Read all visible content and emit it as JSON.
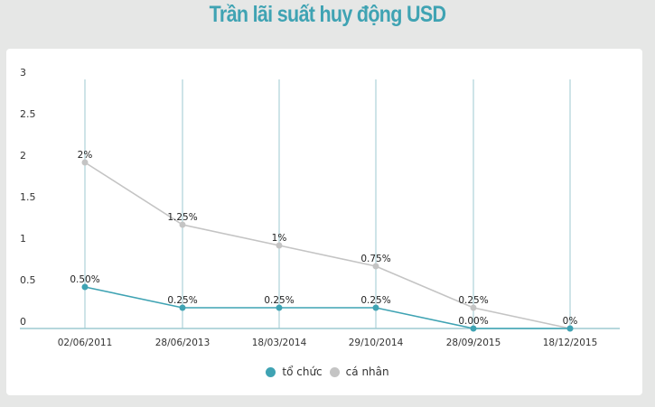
{
  "title": "Trần lãi suất huy động USD",
  "colors": {
    "title": "#3fa3b3",
    "series_to_chuc": "#3fa3b3",
    "series_ca_nhan": "#c4c4c4",
    "gridline": "#9ecad2",
    "background": "#e6e7e6",
    "card": "#ffffff"
  },
  "legend": [
    {
      "label": "tổ chức",
      "color": "#3fa3b3"
    },
    {
      "label": "cá nhân",
      "color": "#c4c4c4"
    }
  ],
  "chart_data": {
    "type": "line",
    "title": "Trần lãi suất huy động USD",
    "xlabel": "",
    "ylabel": "",
    "categories": [
      "02/06/2011",
      "28/06/2013",
      "18/03/2014",
      "29/10/2014",
      "28/09/2015",
      "18/12/2015"
    ],
    "series": [
      {
        "name": "tổ chức",
        "color": "#3fa3b3",
        "values": [
          0.5,
          0.25,
          0.25,
          0.25,
          0.0,
          0.0
        ],
        "labels": [
          "0.50%",
          "0.25%",
          "0.25%",
          "0.25%",
          "0.00%",
          ""
        ]
      },
      {
        "name": "cá nhân",
        "color": "#c4c4c4",
        "values": [
          2,
          1.25,
          1,
          0.75,
          0.25,
          0
        ],
        "labels": [
          "2%",
          "1.25%",
          "1%",
          "0.75%",
          "0.25%",
          "0%"
        ]
      }
    ],
    "yticks": [
      "0",
      "0.5",
      "1",
      "1.5",
      "2",
      "2.5",
      "3"
    ],
    "ylim": [
      0,
      3
    ],
    "grid": "vertical lines at each category",
    "legend_position": "bottom"
  }
}
